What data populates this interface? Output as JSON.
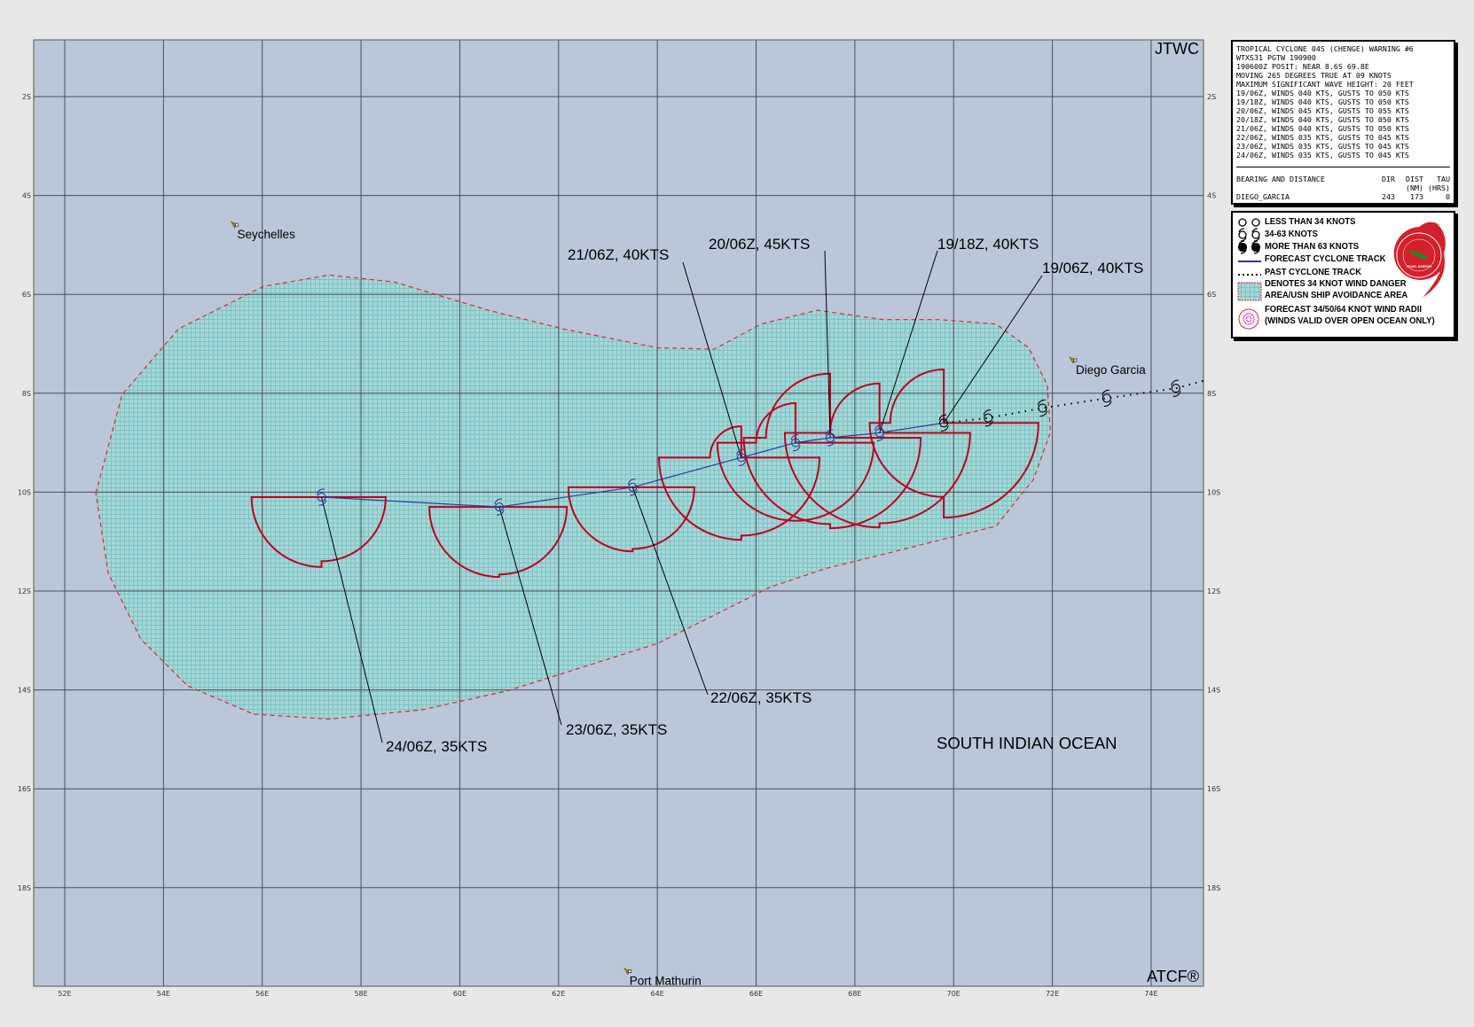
{
  "map": {
    "agency_label": "JTWC",
    "footer_label": "ATCF®",
    "ocean_label": "SOUTH INDIAN OCEAN",
    "lon_ticks": [
      "52E",
      "54E",
      "56E",
      "58E",
      "60E",
      "62E",
      "64E",
      "66E",
      "68E",
      "70E",
      "72E",
      "74E"
    ],
    "lat_ticks": [
      "2S",
      "4S",
      "6S",
      "8S",
      "10S",
      "12S",
      "14S",
      "16S",
      "18S"
    ],
    "extent": {
      "lon": [
        51.37,
        75.05
      ],
      "lat_south": [
        0.85,
        20.0
      ]
    },
    "colors": {
      "ocean": "#b9c7d9",
      "grid": "#4a4f56",
      "danger_fill": "#a9d6d6",
      "danger_hatch": "#78c4c4",
      "danger_border": "#e8202a",
      "wind_radii": "#c0001e",
      "forecast_track": "#2a3a9a",
      "past_track": "#000000"
    },
    "places": [
      {
        "name": "Seychelles",
        "lon": 55.44,
        "lat": 4.6
      },
      {
        "name": "Diego Garcia",
        "lon": 72.42,
        "lat": 7.34
      },
      {
        "name": "Port Mathurin",
        "lon": 63.4,
        "lat": 19.7
      }
    ],
    "past_track": [
      {
        "lon": 75.05,
        "lat": 7.75
      },
      {
        "lon": 74.5,
        "lat": 7.9
      },
      {
        "lon": 73.1,
        "lat": 8.1
      },
      {
        "lon": 71.8,
        "lat": 8.3
      },
      {
        "lon": 70.7,
        "lat": 8.5
      },
      {
        "lon": 69.8,
        "lat": 8.6
      }
    ],
    "forecast_track": [
      {
        "time": "19/06Z",
        "kts": 40,
        "label": "19/06Z,  40KTS",
        "lon": 69.8,
        "lat": 8.6,
        "radii_nm": {
          "ne": 0,
          "se": 115,
          "sw": 90,
          "nw": 65
        }
      },
      {
        "time": "19/18Z",
        "kts": 40,
        "label": "19/18Z,  40KTS",
        "lon": 68.5,
        "lat": 8.8,
        "radii_nm": {
          "ne": 5,
          "se": 110,
          "sw": 115,
          "nw": 60
        }
      },
      {
        "time": "20/06Z",
        "kts": 45,
        "label": "20/06Z,  45KTS",
        "lon": 67.5,
        "lat": 8.9,
        "radii_nm": {
          "ne": 5,
          "se": 110,
          "sw": 105,
          "nw": 78
        }
      },
      {
        "time": "20/18Z",
        "kts": 40,
        "label": "",
        "lon": 66.8,
        "lat": 9.0,
        "radii_nm": {
          "ne": 0,
          "se": 95,
          "sw": 95,
          "nw": 48
        }
      },
      {
        "time": "21/06Z",
        "kts": 40,
        "label": "21/06Z,  40KTS",
        "lon": 65.7,
        "lat": 9.3,
        "radii_nm": {
          "ne": 0,
          "se": 95,
          "sw": 100,
          "nw": 38
        }
      },
      {
        "time": "22/06Z",
        "kts": 35,
        "label": "22/06Z,  35KTS",
        "lon": 63.5,
        "lat": 9.9,
        "radii_nm": {
          "ne": 0,
          "se": 75,
          "sw": 78,
          "nw": 0
        }
      },
      {
        "time": "23/06Z",
        "kts": 35,
        "label": "23/06Z,  35KTS",
        "lon": 60.8,
        "lat": 10.3,
        "radii_nm": {
          "ne": 0,
          "se": 82,
          "sw": 85,
          "nw": 0
        }
      },
      {
        "time": "24/06Z",
        "kts": 35,
        "label": "24/06Z,  35KTS",
        "lon": 57.2,
        "lat": 10.1,
        "radii_nm": {
          "ne": 0,
          "se": 78,
          "sw": 85,
          "nw": 0
        }
      }
    ],
    "danger_area": [
      [
        52.63,
        10.02
      ],
      [
        53.16,
        8.03
      ],
      [
        54.3,
        6.7
      ],
      [
        56.02,
        5.84
      ],
      [
        57.35,
        5.61
      ],
      [
        58.68,
        5.75
      ],
      [
        60.58,
        6.32
      ],
      [
        62.1,
        6.7
      ],
      [
        64.01,
        7.08
      ],
      [
        65.15,
        7.11
      ],
      [
        66.1,
        6.6
      ],
      [
        67.24,
        6.32
      ],
      [
        68.57,
        6.51
      ],
      [
        69.72,
        6.51
      ],
      [
        70.86,
        6.6
      ],
      [
        71.52,
        7.08
      ],
      [
        71.9,
        7.84
      ],
      [
        71.96,
        8.79
      ],
      [
        71.62,
        9.74
      ],
      [
        70.86,
        10.69
      ],
      [
        69.72,
        10.97
      ],
      [
        68.57,
        11.26
      ],
      [
        67.43,
        11.54
      ],
      [
        66.29,
        11.92
      ],
      [
        65.15,
        12.49
      ],
      [
        64.01,
        13.06
      ],
      [
        62.49,
        13.54
      ],
      [
        60.96,
        14.02
      ],
      [
        59.25,
        14.4
      ],
      [
        57.35,
        14.59
      ],
      [
        55.82,
        14.49
      ],
      [
        54.49,
        13.92
      ],
      [
        53.54,
        12.97
      ],
      [
        52.88,
        11.64
      ]
    ]
  },
  "warning": {
    "lines": [
      "TROPICAL CYCLONE 04S (CHENGE) WARNING #6",
      "WTXS31 PGTW 190900",
      "190600Z POSIT: NEAR 8.6S 69.8E",
      "MOVING 265 DEGREES TRUE AT 09 KNOTS",
      "MAXIMUM SIGNIFICANT WAVE HEIGHT: 20 FEET",
      "19/06Z, WINDS 040 KTS, GUSTS TO 050 KTS",
      "19/18Z, WINDS 040 KTS, GUSTS TO 050 KTS",
      "20/06Z, WINDS 045 KTS, GUSTS TO 055 KTS",
      "20/18Z, WINDS 040 KTS, GUSTS TO 050 KTS",
      "21/06Z, WINDS 040 KTS, GUSTS TO 050 KTS",
      "22/06Z, WINDS 035 KTS, GUSTS TO 045 KTS",
      "23/06Z, WINDS 035 KTS, GUSTS TO 045 KTS",
      "24/06Z, WINDS 035 KTS, GUSTS TO 045 KTS"
    ],
    "bearing": {
      "header": [
        "BEARING AND DISTANCE",
        "DIR",
        "DIST",
        "TAU"
      ],
      "units": [
        "",
        "",
        "(NM)",
        "(HRS)"
      ],
      "rows": [
        [
          "DIEGO_GARCIA",
          "243",
          "173",
          "0"
        ]
      ]
    }
  },
  "legend": {
    "items": [
      {
        "icon": "cyclone-open-icon",
        "label": "LESS THAN 34 KNOTS"
      },
      {
        "icon": "cyclone-hook-icon",
        "label": "34-63 KNOTS"
      },
      {
        "icon": "cyclone-filled-icon",
        "label": "MORE THAN 63 KNOTS"
      },
      {
        "icon": "solid-line-icon",
        "label": "FORECAST CYCLONE TRACK"
      },
      {
        "icon": "dotted-line-icon",
        "label": "PAST CYCLONE TRACK"
      },
      {
        "icon": "hatched-area-icon",
        "label": "DENOTES 34 KNOT WIND DANGER"
      },
      {
        "icon": "",
        "label": "AREA/USN SHIP AVOIDANCE AREA"
      },
      {
        "icon": "wind-radii-icon",
        "label": "FORECAST 34/50/64 KNOT WIND RADII"
      },
      {
        "icon": "",
        "label": "(WINDS VALID OVER OPEN OCEAN ONLY)"
      }
    ],
    "seal": "JOINT TYPHOON WARNING CENTER PEARL HARBOR HAWAII"
  }
}
